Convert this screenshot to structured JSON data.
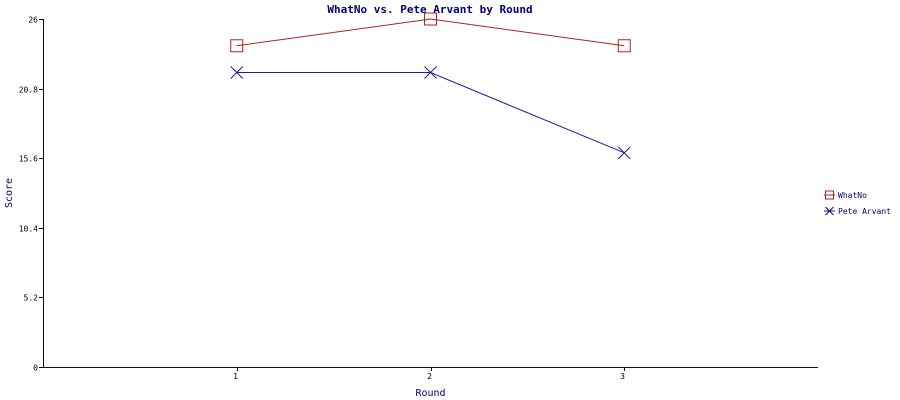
{
  "chart_data": {
    "type": "line",
    "title": "WhatNo vs. Pete Arvant by Round",
    "xlabel": "Round",
    "ylabel": "Score",
    "x": [
      1,
      2,
      3
    ],
    "xlim": [
      0,
      4
    ],
    "ylim": [
      0,
      26
    ],
    "y_ticks": [
      "0",
      "5.2",
      "10.4",
      "15.6",
      "20.8",
      "26"
    ],
    "x_ticks": [
      "1",
      "2",
      "3"
    ],
    "grid": false,
    "legend_position": "right",
    "series": [
      {
        "name": "WhatNo",
        "values": [
          24,
          26,
          24
        ],
        "color": "#b22222",
        "marker": "square"
      },
      {
        "name": "Pete Arvant",
        "values": [
          22,
          22,
          16
        ],
        "color": "#1c1c9c",
        "marker": "x"
      }
    ]
  }
}
